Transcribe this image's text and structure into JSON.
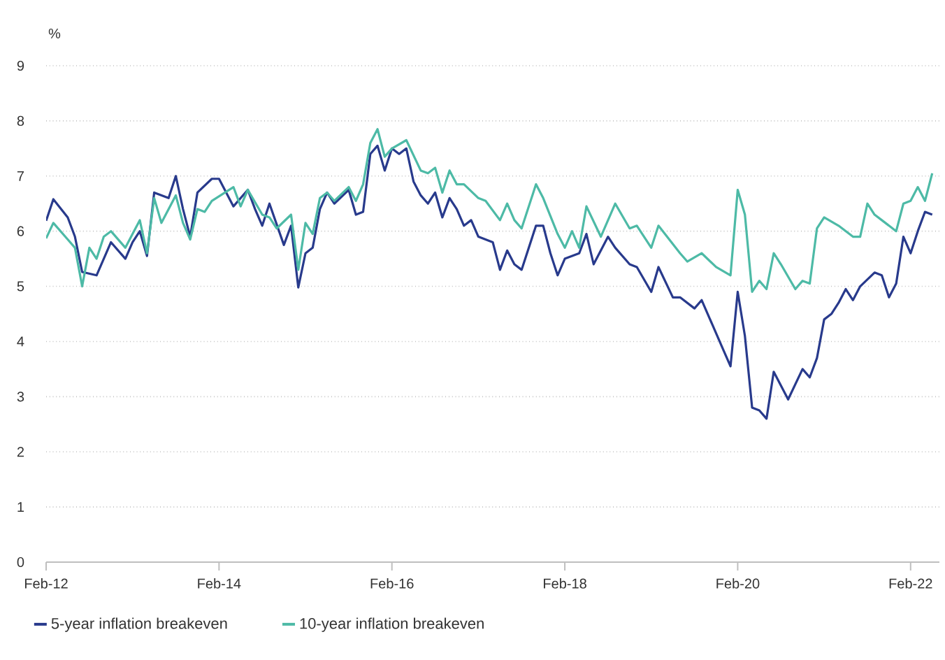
{
  "chart_data": {
    "type": "line",
    "ylabel": "%",
    "legend": "bottom",
    "grid": "y",
    "xlim": [
      "2012-02",
      "2022-06"
    ],
    "xticks": [
      {
        "value": "2012-02",
        "label": "Feb-12"
      },
      {
        "value": "2014-02",
        "label": "Feb-14"
      },
      {
        "value": "2016-02",
        "label": "Feb-16"
      },
      {
        "value": "2018-02",
        "label": "Feb-18"
      },
      {
        "value": "2020-02",
        "label": "Feb-20"
      },
      {
        "value": "2022-02",
        "label": "Feb-22"
      }
    ],
    "ylim": [
      0,
      9
    ],
    "yticks": [
      0,
      1,
      2,
      3,
      4,
      5,
      6,
      7,
      8,
      9
    ],
    "series": [
      {
        "name": "5-year inflation breakeven",
        "color": "#283a8c",
        "x": [
          "2012-02",
          "2012-03",
          "2012-05",
          "2012-06",
          "2012-07",
          "2012-09",
          "2012-10",
          "2012-11",
          "2013-01",
          "2013-02",
          "2013-03",
          "2013-04",
          "2013-05",
          "2013-07",
          "2013-08",
          "2013-09",
          "2013-10",
          "2013-11",
          "2014-01",
          "2014-02",
          "2014-03",
          "2014-04",
          "2014-06",
          "2014-07",
          "2014-08",
          "2014-09",
          "2014-11",
          "2014-12",
          "2015-01",
          "2015-02",
          "2015-03",
          "2015-04",
          "2015-05",
          "2015-06",
          "2015-08",
          "2015-09",
          "2015-10",
          "2015-11",
          "2015-12",
          "2016-01",
          "2016-02",
          "2016-03",
          "2016-04",
          "2016-05",
          "2016-06",
          "2016-07",
          "2016-08",
          "2016-09",
          "2016-10",
          "2016-11",
          "2016-12",
          "2017-01",
          "2017-02",
          "2017-04",
          "2017-05",
          "2017-06",
          "2017-07",
          "2017-08",
          "2017-10",
          "2017-11",
          "2017-12",
          "2018-01",
          "2018-02",
          "2018-04",
          "2018-05",
          "2018-06",
          "2018-08",
          "2018-09",
          "2018-11",
          "2018-12",
          "2019-02",
          "2019-03",
          "2019-05",
          "2019-06",
          "2019-08",
          "2019-09",
          "2019-11",
          "2019-12",
          "2020-01",
          "2020-02",
          "2020-03",
          "2020-04",
          "2020-05",
          "2020-06",
          "2020-07",
          "2020-09",
          "2020-11",
          "2020-12",
          "2021-01",
          "2021-02",
          "2021-03",
          "2021-04",
          "2021-05",
          "2021-06",
          "2021-07",
          "2021-09",
          "2021-10",
          "2021-11",
          "2021-12",
          "2022-01",
          "2022-02",
          "2022-03",
          "2022-04",
          "2022-05"
        ],
        "values": [
          6.19,
          6.58,
          6.25,
          5.9,
          5.26,
          5.2,
          5.5,
          5.8,
          5.5,
          5.8,
          6.0,
          5.55,
          6.7,
          6.6,
          7.0,
          6.4,
          5.9,
          6.7,
          6.95,
          6.95,
          6.7,
          6.45,
          6.75,
          6.4,
          6.1,
          6.5,
          5.75,
          6.1,
          4.98,
          5.6,
          5.7,
          6.4,
          6.7,
          6.5,
          6.75,
          6.3,
          6.35,
          7.4,
          7.55,
          7.1,
          7.5,
          7.4,
          7.5,
          6.9,
          6.65,
          6.5,
          6.7,
          6.25,
          6.6,
          6.4,
          6.1,
          6.2,
          5.9,
          5.8,
          5.3,
          5.65,
          5.4,
          5.3,
          6.1,
          6.1,
          5.6,
          5.2,
          5.5,
          5.6,
          5.95,
          5.4,
          5.9,
          5.7,
          5.4,
          5.35,
          4.9,
          5.35,
          4.8,
          4.8,
          4.6,
          4.75,
          4.15,
          3.85,
          3.55,
          4.9,
          4.1,
          2.8,
          2.75,
          2.6,
          3.45,
          2.95,
          3.5,
          3.35,
          3.7,
          4.4,
          4.5,
          4.7,
          4.95,
          4.75,
          5.0,
          5.25,
          5.2,
          4.8,
          5.05,
          5.9,
          5.6,
          6.0,
          6.35,
          6.3
        ]
      },
      {
        "name": "10-year inflation breakeven",
        "color": "#4dbaa6",
        "x": [
          "2012-02",
          "2012-03",
          "2012-04",
          "2012-05",
          "2012-06",
          "2012-07",
          "2012-08",
          "2012-09",
          "2012-10",
          "2012-11",
          "2013-01",
          "2013-02",
          "2013-03",
          "2013-04",
          "2013-05",
          "2013-06",
          "2013-08",
          "2013-09",
          "2013-10",
          "2013-11",
          "2013-12",
          "2014-01",
          "2014-04",
          "2014-05",
          "2014-06",
          "2014-08",
          "2014-09",
          "2014-10",
          "2014-12",
          "2015-01",
          "2015-02",
          "2015-03",
          "2015-04",
          "2015-05",
          "2015-06",
          "2015-08",
          "2015-09",
          "2015-10",
          "2015-11",
          "2015-12",
          "2016-01",
          "2016-02",
          "2016-04",
          "2016-06",
          "2016-07",
          "2016-08",
          "2016-09",
          "2016-10",
          "2016-11",
          "2016-12",
          "2017-02",
          "2017-03",
          "2017-05",
          "2017-06",
          "2017-07",
          "2017-08",
          "2017-10",
          "2017-11",
          "2018-01",
          "2018-02",
          "2018-03",
          "2018-04",
          "2018-05",
          "2018-07",
          "2018-09",
          "2018-11",
          "2018-12",
          "2019-02",
          "2019-03",
          "2019-06",
          "2019-07",
          "2019-09",
          "2019-11",
          "2020-01",
          "2020-02",
          "2020-03",
          "2020-04",
          "2020-05",
          "2020-06",
          "2020-07",
          "2020-08",
          "2020-10",
          "2020-11",
          "2020-12",
          "2021-01",
          "2021-02",
          "2021-04",
          "2021-06",
          "2021-07",
          "2021-08",
          "2021-09",
          "2021-10",
          "2021-12",
          "2022-01",
          "2022-02",
          "2022-03",
          "2022-04",
          "2022-05"
        ],
        "values": [
          5.87,
          6.15,
          6.0,
          5.85,
          5.7,
          5.0,
          5.7,
          5.5,
          5.9,
          6.0,
          5.7,
          5.95,
          6.2,
          5.6,
          6.6,
          6.15,
          6.65,
          6.15,
          5.85,
          6.4,
          6.35,
          6.55,
          6.8,
          6.45,
          6.75,
          6.3,
          6.25,
          6.05,
          6.3,
          5.3,
          6.15,
          5.95,
          6.6,
          6.7,
          6.55,
          6.8,
          6.55,
          6.85,
          7.6,
          7.85,
          7.35,
          7.5,
          7.65,
          7.1,
          7.05,
          7.15,
          6.7,
          7.1,
          6.85,
          6.85,
          6.6,
          6.55,
          6.2,
          6.5,
          6.2,
          6.05,
          6.85,
          6.6,
          5.95,
          5.7,
          6.0,
          5.7,
          6.45,
          5.9,
          6.5,
          6.05,
          6.1,
          5.7,
          6.1,
          5.6,
          5.45,
          5.6,
          5.35,
          5.2,
          6.75,
          6.3,
          4.9,
          5.1,
          4.95,
          5.6,
          5.4,
          4.95,
          5.1,
          5.05,
          6.05,
          6.25,
          6.1,
          5.9,
          5.9,
          6.5,
          6.3,
          6.2,
          6.0,
          6.5,
          6.55,
          6.8,
          6.55,
          7.05
        ]
      }
    ]
  }
}
